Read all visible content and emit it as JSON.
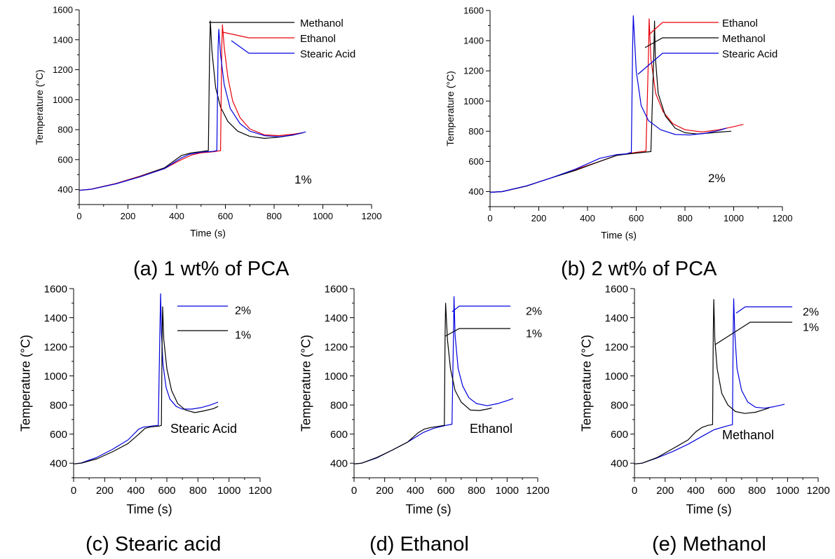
{
  "captions": {
    "a": "(a) 1 wt% of PCA",
    "b": "(b) 2 wt% of PCA",
    "c": "(c) Stearic acid",
    "d": "(d) Ethanol",
    "e": "(e) Methanol"
  },
  "colors": {
    "black": "#000000",
    "red": "#e8000b",
    "blue": "#0000dd"
  },
  "chart_data": [
    {
      "id": "a",
      "type": "line",
      "xlabel": "Time (s)",
      "ylabel": "Temperature (°C)",
      "xlim": [
        0,
        1200
      ],
      "ylim": [
        300,
        1600
      ],
      "xticks": [
        0,
        200,
        400,
        600,
        800,
        1000,
        1200
      ],
      "yticks": [
        400,
        600,
        800,
        1000,
        1200,
        1400,
        1600
      ],
      "annotation": "1%",
      "legend_entries": [
        "Methanol",
        "Ethanol",
        "Stearic Acid"
      ],
      "series": [
        {
          "name": "Methanol",
          "color": "#000000",
          "x": [
            0,
            50,
            150,
            250,
            350,
            420,
            460,
            500,
            530,
            535,
            538,
            545,
            560,
            580,
            610,
            650,
            700,
            760,
            820,
            880,
            920
          ],
          "y": [
            395,
            403,
            440,
            490,
            545,
            628,
            645,
            653,
            660,
            1300,
            1525,
            1320,
            1080,
            950,
            855,
            790,
            755,
            742,
            750,
            765,
            780
          ]
        },
        {
          "name": "Ethanol",
          "color": "#e8000b",
          "x": [
            0,
            50,
            150,
            250,
            350,
            420,
            460,
            500,
            550,
            580,
            585,
            588,
            595,
            610,
            630,
            660,
            700,
            760,
            820,
            880,
            920
          ],
          "y": [
            395,
            403,
            440,
            488,
            540,
            600,
            630,
            645,
            652,
            660,
            1350,
            1500,
            1350,
            1150,
            990,
            880,
            805,
            765,
            760,
            770,
            780
          ]
        },
        {
          "name": "Stearic Acid",
          "color": "#0000dd",
          "x": [
            0,
            50,
            150,
            250,
            350,
            420,
            450,
            500,
            550,
            565,
            570,
            573,
            580,
            595,
            620,
            660,
            700,
            760,
            820,
            880,
            930
          ],
          "y": [
            395,
            402,
            438,
            485,
            540,
            612,
            635,
            650,
            655,
            660,
            1350,
            1470,
            1300,
            1100,
            940,
            840,
            790,
            760,
            752,
            765,
            785
          ]
        }
      ]
    },
    {
      "id": "b",
      "type": "line",
      "xlabel": "Time (s)",
      "ylabel": "Temperature (°C)",
      "xlim": [
        0,
        1200
      ],
      "ylim": [
        300,
        1600
      ],
      "xticks": [
        0,
        200,
        400,
        600,
        800,
        1000,
        1200
      ],
      "yticks": [
        400,
        600,
        800,
        1000,
        1200,
        1400,
        1600
      ],
      "annotation": "2%",
      "legend_entries": [
        "Ethanol",
        "Methanol",
        "Stearic Acid"
      ],
      "series": [
        {
          "name": "Ethanol",
          "color": "#e8000b",
          "x": [
            0,
            50,
            150,
            250,
            350,
            450,
            520,
            600,
            640,
            650,
            653,
            660,
            680,
            710,
            750,
            800,
            870,
            940,
            1000,
            1040
          ],
          "y": [
            395,
            400,
            437,
            490,
            545,
            600,
            640,
            660,
            668,
            1300,
            1545,
            1280,
            1050,
            930,
            850,
            810,
            795,
            810,
            830,
            845
          ]
        },
        {
          "name": "Methanol",
          "color": "#000000",
          "x": [
            0,
            50,
            150,
            250,
            350,
            450,
            520,
            600,
            660,
            672,
            675,
            678,
            690,
            720,
            760,
            800,
            850,
            900,
            950,
            990
          ],
          "y": [
            395,
            400,
            437,
            490,
            540,
            600,
            640,
            655,
            665,
            1300,
            1530,
            1300,
            1050,
            900,
            820,
            790,
            782,
            788,
            795,
            800
          ]
        },
        {
          "name": "Stearic Acid",
          "color": "#0000dd",
          "x": [
            0,
            50,
            150,
            250,
            350,
            450,
            520,
            560,
            580,
            585,
            588,
            600,
            620,
            650,
            700,
            760,
            820,
            880,
            940,
            970
          ],
          "y": [
            395,
            400,
            438,
            490,
            548,
            620,
            645,
            650,
            660,
            1350,
            1565,
            1200,
            970,
            870,
            810,
            778,
            775,
            785,
            805,
            820
          ]
        }
      ]
    },
    {
      "id": "c",
      "type": "line",
      "xlabel": "Time (s)",
      "ylabel": "Temperature (°C)",
      "xlim": [
        0,
        1200
      ],
      "ylim": [
        300,
        1600
      ],
      "xticks": [
        0,
        200,
        400,
        600,
        800,
        1000,
        1200
      ],
      "yticks": [
        400,
        600,
        800,
        1000,
        1200,
        1400,
        1600
      ],
      "annotation": "Stearic Acid",
      "legend_entries": [
        "2%",
        "1%"
      ],
      "series": [
        {
          "name": "2%",
          "color": "#0000dd",
          "x": [
            0,
            50,
            150,
            250,
            350,
            420,
            450,
            500,
            545,
            555,
            560,
            565,
            575,
            595,
            620,
            660,
            700,
            760,
            820,
            880,
            930
          ],
          "y": [
            395,
            402,
            440,
            495,
            560,
            635,
            648,
            655,
            660,
            1300,
            1565,
            1300,
            1080,
            920,
            840,
            790,
            772,
            772,
            782,
            800,
            820
          ]
        },
        {
          "name": "1%",
          "color": "#000000",
          "x": [
            0,
            50,
            150,
            250,
            350,
            420,
            460,
            500,
            550,
            565,
            570,
            573,
            580,
            600,
            630,
            670,
            720,
            780,
            840,
            900,
            930
          ],
          "y": [
            395,
            400,
            430,
            478,
            535,
            600,
            640,
            650,
            655,
            660,
            1300,
            1475,
            1250,
            1050,
            900,
            810,
            765,
            748,
            760,
            775,
            790
          ]
        }
      ]
    },
    {
      "id": "d",
      "type": "line",
      "xlabel": "Time (s)",
      "ylabel": "Temperature (°C)",
      "xlim": [
        0,
        1200
      ],
      "ylim": [
        300,
        1600
      ],
      "xticks": [
        0,
        200,
        400,
        600,
        800,
        1000,
        1200
      ],
      "yticks": [
        400,
        600,
        800,
        1000,
        1200,
        1400,
        1600
      ],
      "annotation": "Ethanol",
      "legend_entries": [
        "2%",
        "1%"
      ],
      "series": [
        {
          "name": "2%",
          "color": "#0000dd",
          "x": [
            0,
            50,
            150,
            250,
            350,
            450,
            520,
            600,
            640,
            650,
            653,
            660,
            680,
            710,
            750,
            800,
            870,
            940,
            1000,
            1040
          ],
          "y": [
            395,
            400,
            437,
            490,
            545,
            610,
            640,
            660,
            668,
            1300,
            1545,
            1280,
            1050,
            930,
            850,
            810,
            795,
            810,
            830,
            845
          ]
        },
        {
          "name": "1%",
          "color": "#000000",
          "x": [
            0,
            50,
            150,
            250,
            350,
            420,
            460,
            500,
            560,
            590,
            595,
            598,
            610,
            630,
            660,
            700,
            760,
            820,
            870,
            900
          ],
          "y": [
            395,
            400,
            440,
            490,
            545,
            610,
            635,
            645,
            655,
            660,
            1300,
            1500,
            1250,
            1050,
            900,
            820,
            765,
            762,
            772,
            780
          ]
        }
      ]
    },
    {
      "id": "e",
      "type": "line",
      "xlabel": "Time (s)",
      "ylabel": "Temperature (°C)",
      "xlim": [
        0,
        1200
      ],
      "ylim": [
        300,
        1600
      ],
      "xticks": [
        0,
        200,
        400,
        600,
        800,
        1000,
        1200
      ],
      "yticks": [
        400,
        600,
        800,
        1000,
        1200,
        1400,
        1600
      ],
      "annotation": "Methanol",
      "legend_entries": [
        "2%",
        "1%"
      ],
      "series": [
        {
          "name": "2%",
          "color": "#0000dd",
          "x": [
            0,
            50,
            150,
            250,
            350,
            450,
            520,
            600,
            640,
            645,
            648,
            655,
            670,
            700,
            740,
            790,
            850,
            910,
            960,
            980
          ],
          "y": [
            395,
            400,
            437,
            480,
            530,
            590,
            630,
            655,
            665,
            1300,
            1530,
            1300,
            1050,
            900,
            820,
            785,
            778,
            788,
            800,
            805
          ]
        },
        {
          "name": "1%",
          "color": "#000000",
          "x": [
            0,
            50,
            150,
            250,
            350,
            400,
            440,
            480,
            510,
            515,
            518,
            525,
            540,
            570,
            610,
            660,
            720,
            790,
            850,
            880
          ],
          "y": [
            395,
            400,
            440,
            500,
            560,
            615,
            645,
            660,
            665,
            1300,
            1525,
            1250,
            1050,
            880,
            800,
            755,
            742,
            750,
            770,
            780
          ]
        }
      ]
    }
  ]
}
